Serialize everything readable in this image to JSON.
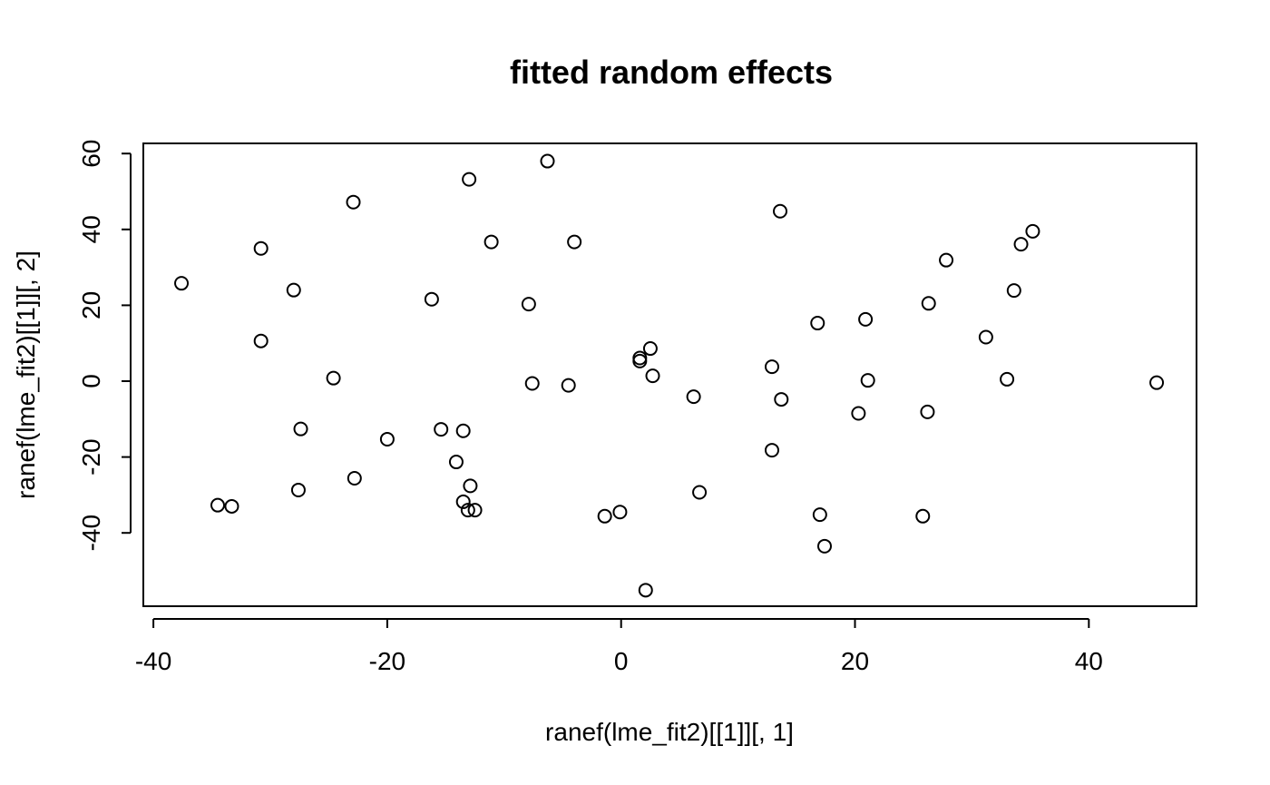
{
  "chart_data": {
    "type": "scatter",
    "title": "fitted random effects",
    "xlabel": "ranef(lme_fit2)[[1]][, 1]",
    "ylabel": "ranef(lme_fit2)[[1]][, 2]",
    "xlim": [
      -40,
      50
    ],
    "ylim": [
      -60,
      63
    ],
    "xticks": [
      -40,
      -20,
      0,
      20,
      40
    ],
    "yticks": [
      -40,
      -20,
      0,
      20,
      40,
      60
    ],
    "grid": false,
    "marker": "open-circle",
    "color": "#000000",
    "points": [
      {
        "x": -37.6,
        "y": 25.8
      },
      {
        "x": -34.5,
        "y": -32.7
      },
      {
        "x": -33.3,
        "y": -33.0
      },
      {
        "x": -30.8,
        "y": 35.0
      },
      {
        "x": -30.8,
        "y": 10.6
      },
      {
        "x": -28.0,
        "y": 24.0
      },
      {
        "x": -27.6,
        "y": -28.7
      },
      {
        "x": -27.4,
        "y": -12.6
      },
      {
        "x": -24.6,
        "y": 0.8
      },
      {
        "x": -22.9,
        "y": 47.2
      },
      {
        "x": -22.8,
        "y": -25.6
      },
      {
        "x": -20.0,
        "y": -15.3
      },
      {
        "x": -16.2,
        "y": 21.6
      },
      {
        "x": -15.4,
        "y": -12.7
      },
      {
        "x": -14.1,
        "y": -21.3
      },
      {
        "x": -13.5,
        "y": -13.1
      },
      {
        "x": -13.5,
        "y": -31.8
      },
      {
        "x": -13.1,
        "y": -34.0
      },
      {
        "x": -13.0,
        "y": 53.2
      },
      {
        "x": -12.9,
        "y": -27.6
      },
      {
        "x": -12.5,
        "y": -34.0
      },
      {
        "x": -11.1,
        "y": 36.7
      },
      {
        "x": -7.9,
        "y": 20.3
      },
      {
        "x": -7.6,
        "y": -0.6
      },
      {
        "x": -6.3,
        "y": 58.0
      },
      {
        "x": -4.5,
        "y": -1.1
      },
      {
        "x": -4.0,
        "y": 36.7
      },
      {
        "x": -1.4,
        "y": -35.6
      },
      {
        "x": -0.1,
        "y": -34.5
      },
      {
        "x": 1.6,
        "y": 6.1
      },
      {
        "x": 1.6,
        "y": 5.3
      },
      {
        "x": 2.1,
        "y": -55.1
      },
      {
        "x": 2.5,
        "y": 8.6
      },
      {
        "x": 2.7,
        "y": 1.4
      },
      {
        "x": 6.2,
        "y": -4.1
      },
      {
        "x": 6.7,
        "y": -29.3
      },
      {
        "x": 12.9,
        "y": 3.8
      },
      {
        "x": 12.9,
        "y": -18.2
      },
      {
        "x": 13.6,
        "y": 44.8
      },
      {
        "x": 13.7,
        "y": -4.8
      },
      {
        "x": 16.8,
        "y": 15.3
      },
      {
        "x": 17.0,
        "y": -35.2
      },
      {
        "x": 17.4,
        "y": -43.5
      },
      {
        "x": 20.3,
        "y": -8.5
      },
      {
        "x": 20.9,
        "y": 16.3
      },
      {
        "x": 21.1,
        "y": 0.2
      },
      {
        "x": 25.8,
        "y": -35.6
      },
      {
        "x": 26.2,
        "y": -8.1
      },
      {
        "x": 26.3,
        "y": 20.5
      },
      {
        "x": 27.8,
        "y": 31.9
      },
      {
        "x": 31.2,
        "y": 11.6
      },
      {
        "x": 33.0,
        "y": 0.5
      },
      {
        "x": 33.6,
        "y": 23.9
      },
      {
        "x": 34.2,
        "y": 36.1
      },
      {
        "x": 35.2,
        "y": 39.5
      },
      {
        "x": 45.8,
        "y": -0.4
      }
    ]
  }
}
